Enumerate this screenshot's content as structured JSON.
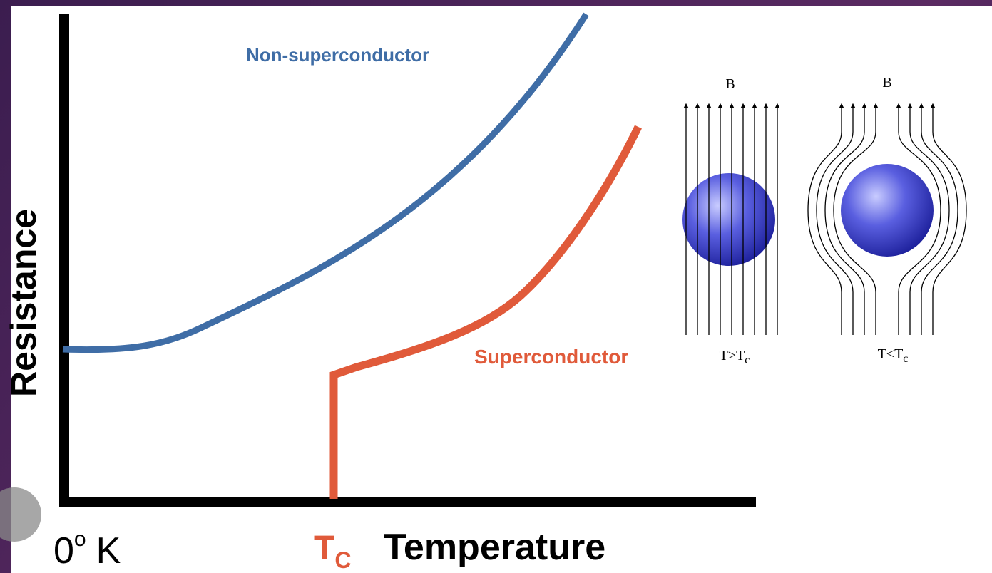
{
  "curves": {
    "normal": "Non-superconductor",
    "super": "Superconductor"
  },
  "axes": {
    "y_label": "Resistance",
    "origin": {
      "number": "0",
      "superscript": "o",
      "unit": "K"
    },
    "critical": {
      "symbol": "T",
      "subscript": "C"
    },
    "x_label": "Temperature"
  },
  "field_diagrams": [
    {
      "field": "B",
      "condition": "T>T",
      "subscript": "c"
    },
    {
      "field": "B",
      "condition": "T<T",
      "subscript": "c"
    }
  ]
}
